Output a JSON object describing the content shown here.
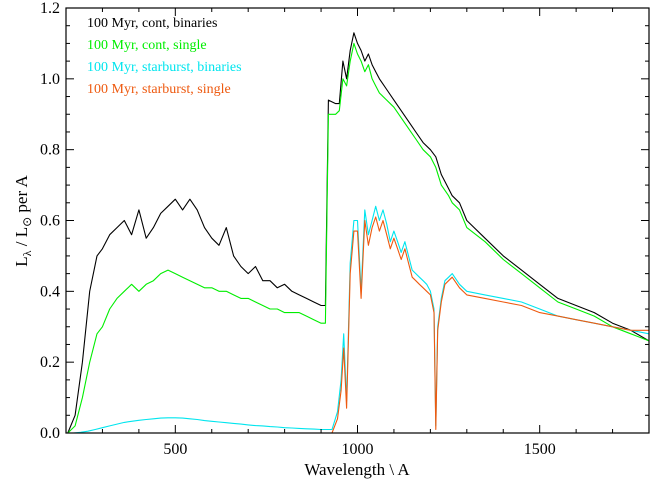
{
  "chart_data": {
    "type": "line",
    "xlabel": "Wavelength \\ A",
    "ylabel": "L",
    "ylabel_sub": "λ",
    "ylabel_mid": " / L",
    "ylabel_sun": "⊙",
    "ylabel_tail": " per A",
    "xlim": [
      200,
      1800
    ],
    "ylim": [
      0.0,
      1.2
    ],
    "xticks": [
      500,
      1000,
      1500
    ],
    "xtick_labels": [
      "500",
      "1000",
      "1500"
    ],
    "yticks": [
      0.0,
      0.2,
      0.4,
      0.6,
      0.8,
      1.0,
      1.2
    ],
    "ytick_labels": [
      "0.0",
      "0.2",
      "0.4",
      "0.6",
      "0.8",
      "1.0",
      "1.2"
    ],
    "legend_position": "top-left",
    "series": [
      {
        "name": "100 Myr, cont, binaries",
        "color": "#000000",
        "x": [
          205,
          225,
          245,
          265,
          285,
          300,
          320,
          340,
          360,
          380,
          400,
          420,
          440,
          460,
          480,
          500,
          520,
          540,
          560,
          580,
          600,
          620,
          640,
          660,
          680,
          700,
          720,
          740,
          760,
          780,
          800,
          820,
          840,
          860,
          880,
          900,
          912,
          920,
          940,
          950,
          960,
          970,
          980,
          990,
          1000,
          1010,
          1020,
          1030,
          1040,
          1050,
          1060,
          1080,
          1100,
          1120,
          1140,
          1160,
          1180,
          1200,
          1215,
          1230,
          1250,
          1260,
          1280,
          1300,
          1350,
          1400,
          1450,
          1500,
          1550,
          1600,
          1650,
          1700,
          1750,
          1800
        ],
        "y": [
          0.0,
          0.05,
          0.2,
          0.4,
          0.5,
          0.52,
          0.56,
          0.58,
          0.6,
          0.56,
          0.63,
          0.55,
          0.58,
          0.62,
          0.64,
          0.66,
          0.63,
          0.66,
          0.63,
          0.58,
          0.55,
          0.53,
          0.58,
          0.5,
          0.47,
          0.45,
          0.47,
          0.43,
          0.43,
          0.41,
          0.42,
          0.4,
          0.39,
          0.38,
          0.37,
          0.36,
          0.36,
          0.94,
          0.93,
          0.93,
          1.05,
          1.0,
          1.08,
          1.13,
          1.1,
          1.08,
          1.05,
          1.07,
          1.04,
          1.02,
          1.0,
          0.97,
          0.94,
          0.91,
          0.88,
          0.85,
          0.82,
          0.8,
          0.78,
          0.73,
          0.69,
          0.67,
          0.65,
          0.6,
          0.55,
          0.5,
          0.46,
          0.42,
          0.38,
          0.36,
          0.34,
          0.31,
          0.29,
          0.26
        ]
      },
      {
        "name": "100 Myr, cont, single",
        "color": "#00ee00",
        "x": [
          205,
          225,
          245,
          265,
          285,
          300,
          320,
          340,
          360,
          380,
          400,
          420,
          440,
          460,
          480,
          500,
          520,
          540,
          560,
          580,
          600,
          620,
          640,
          660,
          680,
          700,
          720,
          740,
          760,
          780,
          800,
          820,
          840,
          860,
          880,
          900,
          912,
          920,
          940,
          950,
          960,
          970,
          980,
          990,
          1000,
          1010,
          1020,
          1030,
          1040,
          1050,
          1060,
          1080,
          1100,
          1120,
          1140,
          1160,
          1180,
          1200,
          1215,
          1230,
          1250,
          1260,
          1280,
          1300,
          1350,
          1400,
          1450,
          1500,
          1550,
          1600,
          1650,
          1700,
          1750,
          1800
        ],
        "y": [
          0.0,
          0.02,
          0.1,
          0.2,
          0.28,
          0.3,
          0.35,
          0.38,
          0.4,
          0.42,
          0.4,
          0.42,
          0.43,
          0.45,
          0.46,
          0.45,
          0.44,
          0.43,
          0.42,
          0.41,
          0.41,
          0.4,
          0.4,
          0.39,
          0.38,
          0.38,
          0.37,
          0.36,
          0.35,
          0.35,
          0.34,
          0.34,
          0.34,
          0.33,
          0.32,
          0.31,
          0.31,
          0.9,
          0.9,
          0.91,
          1.0,
          0.98,
          1.05,
          1.1,
          1.07,
          1.05,
          1.02,
          1.04,
          1.0,
          0.98,
          0.96,
          0.94,
          0.92,
          0.89,
          0.86,
          0.83,
          0.8,
          0.78,
          0.75,
          0.7,
          0.67,
          0.65,
          0.63,
          0.58,
          0.54,
          0.49,
          0.45,
          0.41,
          0.37,
          0.35,
          0.33,
          0.3,
          0.28,
          0.26
        ]
      },
      {
        "name": "100 Myr, starburst, binaries",
        "color": "#00e5ee",
        "x": [
          205,
          220,
          240,
          260,
          280,
          300,
          320,
          340,
          360,
          380,
          400,
          420,
          440,
          460,
          480,
          500,
          520,
          540,
          560,
          580,
          600,
          620,
          640,
          660,
          680,
          700,
          720,
          740,
          760,
          780,
          800,
          820,
          840,
          860,
          880,
          900,
          912,
          930,
          945,
          955,
          962,
          970,
          980,
          990,
          1000,
          1010,
          1020,
          1030,
          1040,
          1050,
          1060,
          1070,
          1080,
          1090,
          1100,
          1110,
          1120,
          1130,
          1140,
          1150,
          1160,
          1170,
          1180,
          1190,
          1200,
          1210,
          1215,
          1220,
          1230,
          1240,
          1250,
          1260,
          1280,
          1300,
          1350,
          1400,
          1450,
          1500,
          1550,
          1600,
          1650,
          1700,
          1750,
          1800
        ],
        "y": [
          0.0,
          0.0,
          0.002,
          0.005,
          0.01,
          0.015,
          0.02,
          0.025,
          0.03,
          0.033,
          0.036,
          0.038,
          0.04,
          0.042,
          0.043,
          0.043,
          0.042,
          0.04,
          0.038,
          0.035,
          0.033,
          0.031,
          0.029,
          0.027,
          0.025,
          0.023,
          0.021,
          0.02,
          0.018,
          0.017,
          0.015,
          0.014,
          0.013,
          0.012,
          0.011,
          0.01,
          0.01,
          0.01,
          0.06,
          0.15,
          0.28,
          0.09,
          0.48,
          0.6,
          0.6,
          0.4,
          0.63,
          0.56,
          0.6,
          0.64,
          0.6,
          0.63,
          0.59,
          0.54,
          0.57,
          0.54,
          0.51,
          0.54,
          0.5,
          0.46,
          0.45,
          0.44,
          0.43,
          0.42,
          0.4,
          0.35,
          0.02,
          0.3,
          0.38,
          0.43,
          0.44,
          0.45,
          0.42,
          0.4,
          0.39,
          0.38,
          0.37,
          0.35,
          0.33,
          0.32,
          0.31,
          0.3,
          0.29,
          0.28
        ]
      },
      {
        "name": "100 Myr, starburst, single",
        "color": "#ee5a10",
        "x": [
          205,
          220,
          240,
          260,
          280,
          300,
          320,
          340,
          360,
          380,
          400,
          420,
          440,
          460,
          480,
          500,
          520,
          540,
          560,
          580,
          600,
          620,
          640,
          660,
          680,
          700,
          720,
          740,
          760,
          780,
          800,
          820,
          840,
          860,
          880,
          900,
          912,
          930,
          945,
          955,
          962,
          970,
          980,
          990,
          1000,
          1010,
          1020,
          1030,
          1040,
          1050,
          1060,
          1070,
          1080,
          1090,
          1100,
          1110,
          1120,
          1130,
          1140,
          1150,
          1160,
          1170,
          1180,
          1190,
          1200,
          1210,
          1215,
          1220,
          1230,
          1240,
          1250,
          1260,
          1280,
          1300,
          1350,
          1400,
          1450,
          1500,
          1550,
          1600,
          1650,
          1700,
          1750,
          1800
        ],
        "y": [
          0.0,
          0.0,
          0.0,
          0.0,
          0.0,
          0.0,
          0.0,
          0.0,
          0.0,
          0.0,
          0.0,
          0.0,
          0.0,
          0.0,
          0.0,
          0.0,
          0.0,
          0.0,
          0.0,
          0.0,
          0.0,
          0.0,
          0.0,
          0.0,
          0.0,
          0.0,
          0.0,
          0.0,
          0.0,
          0.0,
          0.0,
          0.0,
          0.0,
          0.0,
          0.0,
          0.0,
          0.0,
          0.0,
          0.04,
          0.12,
          0.24,
          0.07,
          0.45,
          0.57,
          0.57,
          0.38,
          0.6,
          0.53,
          0.58,
          0.61,
          0.57,
          0.6,
          0.56,
          0.52,
          0.55,
          0.52,
          0.49,
          0.52,
          0.48,
          0.44,
          0.43,
          0.42,
          0.41,
          0.4,
          0.39,
          0.34,
          0.01,
          0.29,
          0.37,
          0.42,
          0.43,
          0.44,
          0.41,
          0.39,
          0.38,
          0.37,
          0.36,
          0.34,
          0.33,
          0.32,
          0.31,
          0.3,
          0.29,
          0.29
        ]
      }
    ]
  }
}
